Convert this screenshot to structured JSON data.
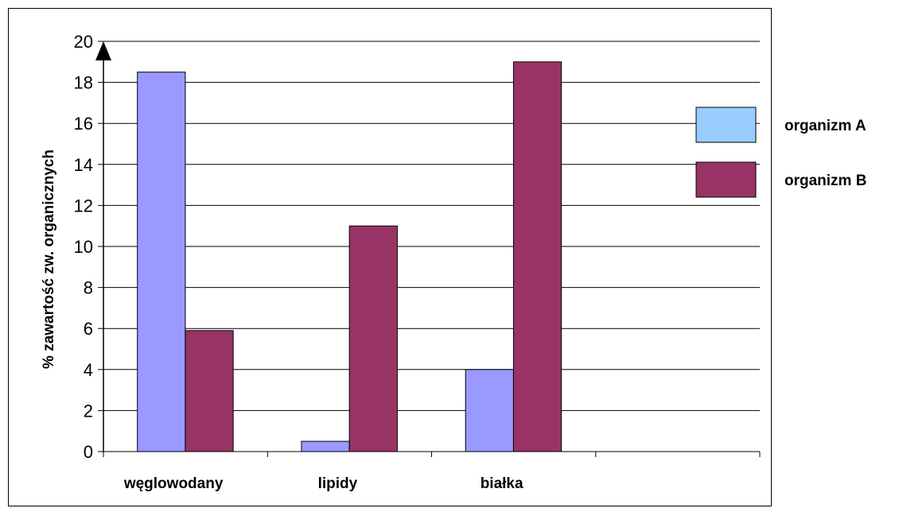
{
  "chart_data": {
    "type": "bar",
    "title": "",
    "xlabel": "",
    "ylabel": "% zawartość zw. organicznych",
    "categories": [
      "węglowodany",
      "lipidy",
      "białka",
      ""
    ],
    "series": [
      {
        "name": "organizm A",
        "values": [
          18.5,
          0.5,
          4,
          null
        ],
        "color": "#9999ff",
        "legend_color": "#99ccff"
      },
      {
        "name": "organizm B",
        "values": [
          5.9,
          11,
          19,
          null
        ],
        "color": "#993366",
        "legend_color": "#993366"
      }
    ],
    "ylim": [
      0,
      20
    ],
    "yticks": [
      0,
      2,
      4,
      6,
      8,
      10,
      12,
      14,
      16,
      18,
      20
    ],
    "grid": true,
    "legend_position": "right"
  }
}
